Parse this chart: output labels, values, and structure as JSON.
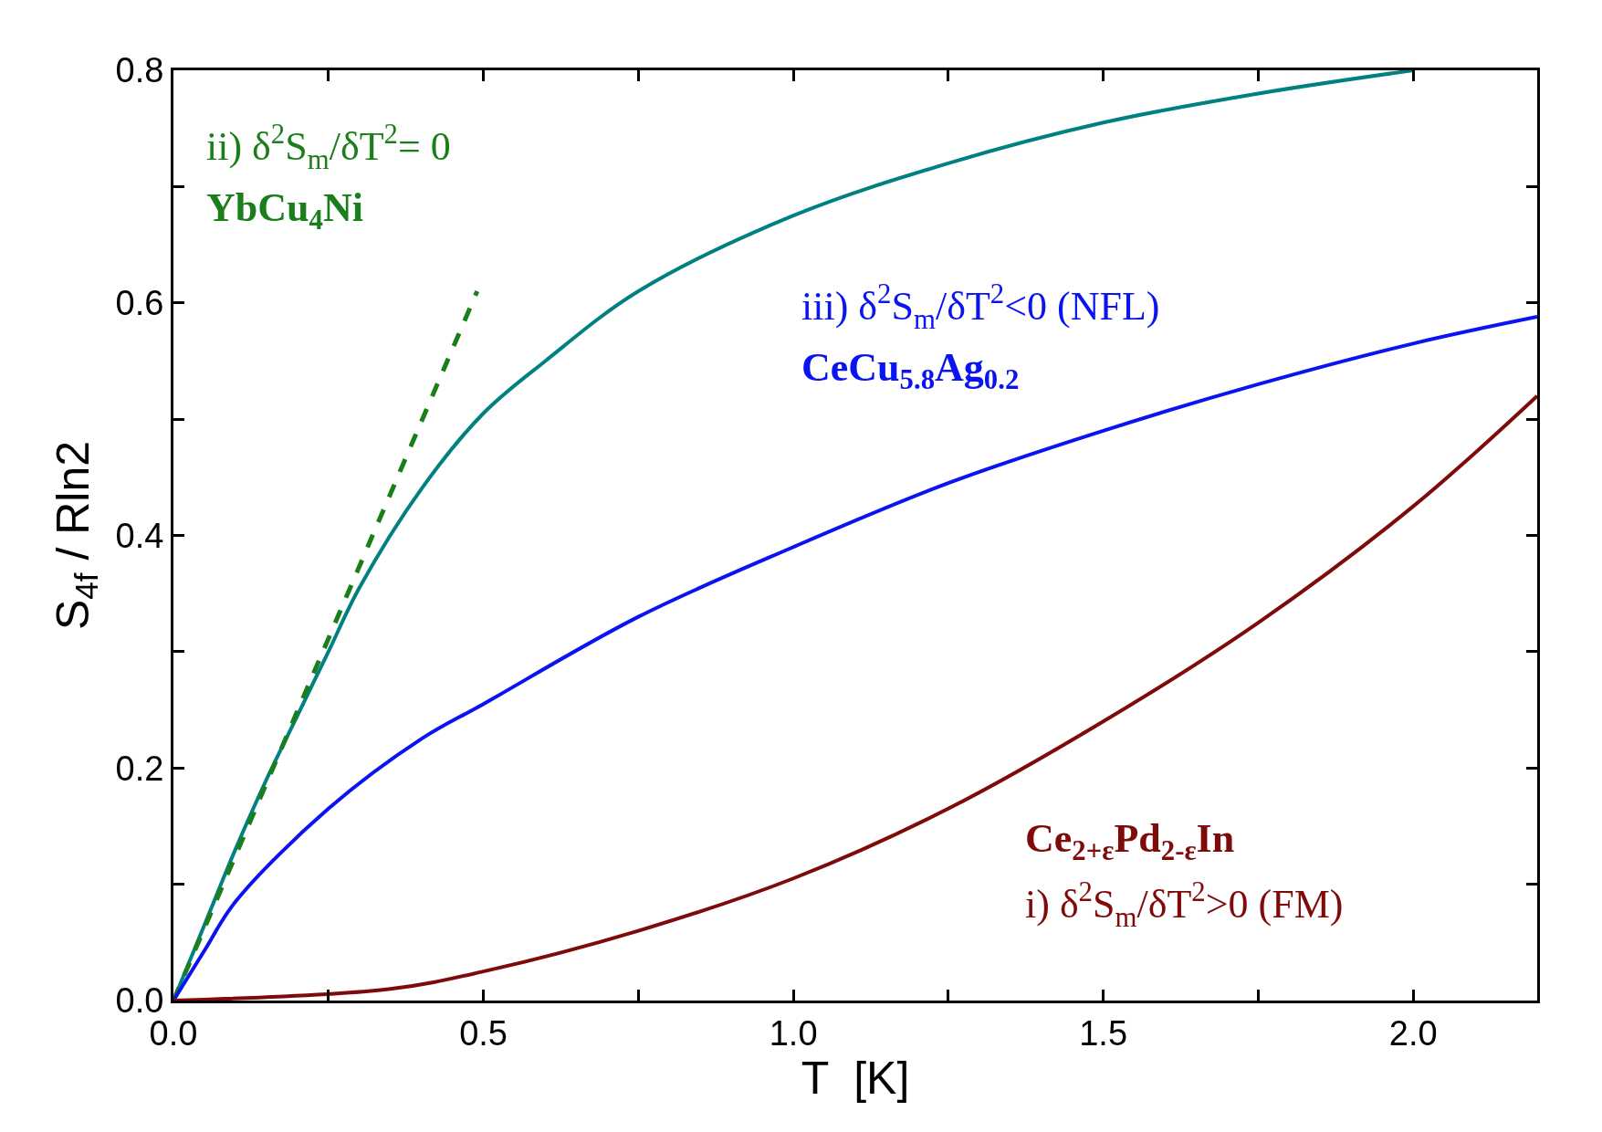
{
  "chart_data": {
    "type": "line",
    "xlabel": "T  [K]",
    "ylabel": "S$_{4f}$ / Rln2",
    "xlim": [
      0,
      2.2
    ],
    "ylim": [
      0,
      0.8
    ],
    "xticks": [
      {
        "value": 0,
        "label": "0.0"
      },
      {
        "value": 0.25,
        "label": null
      },
      0.5,
      {
        "value": 0.75,
        "label": null
      },
      {
        "value": 1,
        "label": "1.0"
      },
      {
        "value": 1.25,
        "label": null
      },
      1.5,
      {
        "value": 1.75,
        "label": null
      },
      {
        "value": 2,
        "label": "2.0"
      }
    ],
    "yticks": [
      {
        "value": 0,
        "label": "0.0"
      },
      {
        "value": 0.1,
        "label": null
      },
      0.2,
      {
        "value": 0.3,
        "label": null
      },
      0.4,
      {
        "value": 0.5,
        "label": null
      },
      0.6,
      {
        "value": 0.7,
        "label": null
      },
      0.8
    ],
    "grid": false,
    "legend": false,
    "series": [
      {
        "color": "#008080",
        "x": [
          0,
          0.05,
          0.1,
          0.15,
          0.2,
          0.25,
          0.3,
          0.4,
          0.5,
          0.6,
          0.75,
          1.0,
          1.25,
          1.5,
          1.75,
          2.0
        ],
        "values": [
          0,
          0.065,
          0.13,
          0.19,
          0.245,
          0.3,
          0.355,
          0.44,
          0.505,
          0.55,
          0.61,
          0.675,
          0.72,
          0.755,
          0.78,
          0.8
        ]
      },
      {
        "name": "YbCu$_{4}$Ni",
        "color": "#1a7f1a",
        "line_style": "dashed",
        "x": [
          0,
          0.49
        ],
        "values": [
          0,
          0.61
        ]
      },
      {
        "name": "CeCu$_{5.8}$Ag$_{0.2}$",
        "color": "#0a14f0",
        "x": [
          0,
          0.05,
          0.1,
          0.25,
          0.4,
          0.5,
          0.75,
          1.0,
          1.25,
          1.5,
          1.75,
          2.0,
          2.2
        ],
        "values": [
          0,
          0.043,
          0.085,
          0.165,
          0.225,
          0.255,
          0.33,
          0.39,
          0.445,
          0.49,
          0.53,
          0.565,
          0.588
        ]
      },
      {
        "name": "Ce$_{2+ε}$Pd$_{2-ε}$In",
        "color": "#7f0a0a",
        "x": [
          0,
          0.35,
          0.5,
          0.75,
          1.0,
          1.25,
          1.5,
          1.75,
          2.0,
          2.2
        ],
        "values": [
          0,
          0.01,
          0.025,
          0.06,
          0.105,
          0.165,
          0.24,
          0.325,
          0.425,
          0.52
        ]
      }
    ],
    "annotations": [
      "ii) δ$^{2}$S$_{m}$/δT$^{2}$= 0",
      "iii) δ$^{2}$S$_{m}$/δT$^{2}$<0 (NFL)",
      "i) δ$^{2}$S$_{m}$/δT$^{2}$>0 (FM)"
    ]
  }
}
